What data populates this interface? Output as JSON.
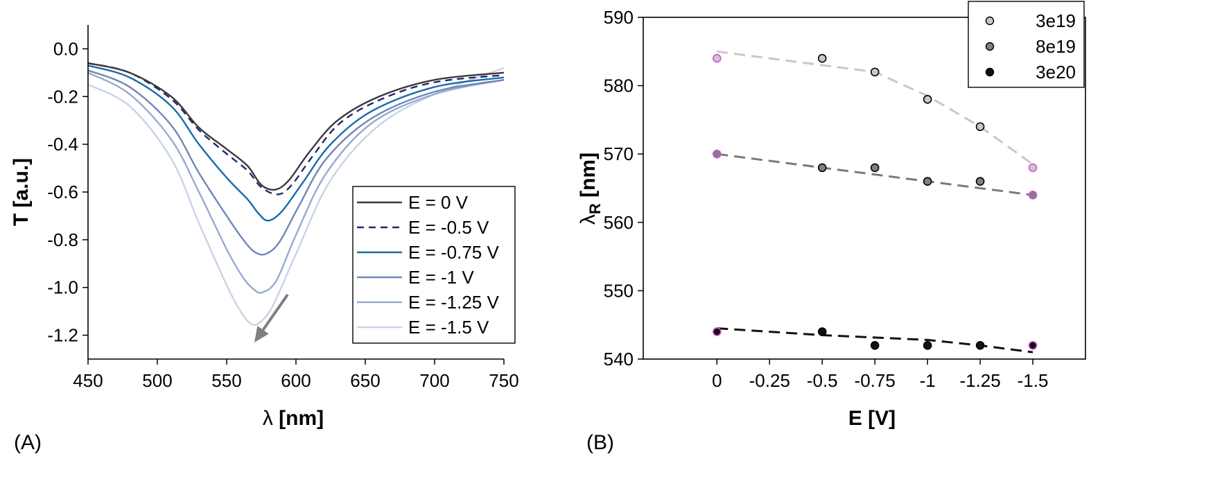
{
  "chart_data": [
    {
      "type": "line",
      "panel_label": "(A)",
      "xlabel_symbol": "λ",
      "xlabel_unit": " [nm]",
      "ylabel": "T [a.u.]",
      "xlim": [
        450,
        750
      ],
      "ylim": [
        -1.3,
        0.1
      ],
      "xticks": [
        450,
        500,
        550,
        600,
        650,
        700,
        750
      ],
      "yticks": [
        0.0,
        -0.2,
        -0.4,
        -0.6,
        -0.8,
        -1.0,
        -1.2
      ],
      "ytick_labels": [
        "0.0",
        "-0.2",
        "-0.4",
        "-0.6",
        "-0.8",
        "-1.0",
        "-1.2"
      ],
      "legend_position": "bottom-right",
      "arrow": {
        "from": [
          594,
          -1.03
        ],
        "to": [
          570,
          -1.23
        ],
        "meaning": "decreasing E"
      },
      "series": [
        {
          "name": "E = 0 V",
          "color": "#3a3a3a",
          "dash": "none",
          "x": [
            450,
            480,
            510,
            530,
            550,
            565,
            575,
            585,
            595,
            610,
            630,
            660,
            700,
            750
          ],
          "y": [
            -0.06,
            -0.1,
            -0.2,
            -0.33,
            -0.42,
            -0.49,
            -0.57,
            -0.59,
            -0.55,
            -0.43,
            -0.3,
            -0.2,
            -0.13,
            -0.1
          ]
        },
        {
          "name": "E = -0.5 V",
          "color": "#1f2a6e",
          "dash": "10,7",
          "x": [
            450,
            480,
            510,
            530,
            550,
            565,
            575,
            587,
            597,
            612,
            632,
            662,
            700,
            750
          ],
          "y": [
            -0.06,
            -0.1,
            -0.21,
            -0.34,
            -0.44,
            -0.51,
            -0.58,
            -0.61,
            -0.57,
            -0.45,
            -0.31,
            -0.21,
            -0.14,
            -0.11
          ]
        },
        {
          "name": "E = -0.75 V",
          "color": "#1a6aa8",
          "dash": "none",
          "x": [
            450,
            480,
            510,
            530,
            550,
            565,
            573,
            580,
            590,
            605,
            625,
            655,
            700,
            750
          ],
          "y": [
            -0.07,
            -0.12,
            -0.24,
            -0.4,
            -0.54,
            -0.63,
            -0.69,
            -0.72,
            -0.68,
            -0.56,
            -0.4,
            -0.26,
            -0.16,
            -0.12
          ]
        },
        {
          "name": "E = -1 V",
          "color": "#6f86b8",
          "dash": "none",
          "x": [
            450,
            480,
            510,
            530,
            550,
            562,
            570,
            578,
            588,
            602,
            622,
            655,
            700,
            750
          ],
          "y": [
            -0.09,
            -0.16,
            -0.32,
            -0.52,
            -0.7,
            -0.8,
            -0.85,
            -0.86,
            -0.81,
            -0.66,
            -0.46,
            -0.29,
            -0.18,
            -0.13
          ]
        },
        {
          "name": "E = -1.25 V",
          "color": "#97a9cf",
          "dash": "none",
          "x": [
            450,
            480,
            510,
            530,
            550,
            562,
            570,
            576,
            586,
            600,
            622,
            655,
            700,
            750
          ],
          "y": [
            -0.1,
            -0.19,
            -0.38,
            -0.6,
            -0.84,
            -0.96,
            -1.01,
            -1.02,
            -0.97,
            -0.78,
            -0.52,
            -0.31,
            -0.19,
            -0.13
          ]
        },
        {
          "name": "E = -1.5 V",
          "color": "#c8d2e8",
          "dash": "none",
          "x": [
            450,
            480,
            510,
            530,
            550,
            560,
            567,
            573,
            583,
            600,
            625,
            660,
            700,
            750
          ],
          "y": [
            -0.15,
            -0.24,
            -0.46,
            -0.73,
            -0.99,
            -1.1,
            -1.15,
            -1.15,
            -1.08,
            -0.86,
            -0.55,
            -0.32,
            -0.19,
            -0.08
          ]
        }
      ]
    },
    {
      "type": "scatter",
      "panel_label": "(B)",
      "xlabel": "E [V]",
      "ylabel_main": "λ",
      "ylabel_sub": "R",
      "ylabel_unit": " [nm]",
      "xlim": [
        0.35,
        -1.75
      ],
      "ylim": [
        540,
        590
      ],
      "xticks": [
        0,
        -0.25,
        -0.5,
        -0.75,
        -1,
        -1.25,
        -1.5
      ],
      "xtick_labels": [
        "0",
        "-0.25",
        "-0.5",
        "-0.75",
        "-1",
        "-1.25",
        "-1.5"
      ],
      "yticks": [
        540,
        550,
        560,
        570,
        580,
        590
      ],
      "legend_position": "top-right",
      "highlight_color": "#d94fd9",
      "series": [
        {
          "name": "3e19",
          "marker_color": "#c8c8c8",
          "line_color": "#c8c8c8",
          "x": [
            0,
            -0.5,
            -0.75,
            -1,
            -1.25,
            -1.5
          ],
          "y": [
            584,
            584,
            582,
            578,
            574,
            568
          ],
          "fit_x": [
            0,
            -0.5,
            -0.75,
            -1,
            -1.25,
            -1.5
          ],
          "fit_y": [
            585,
            583,
            582,
            578.5,
            574,
            568.5
          ]
        },
        {
          "name": "8e19",
          "marker_color": "#808080",
          "line_color": "#7a7a7a",
          "x": [
            0,
            -0.5,
            -0.75,
            -1,
            -1.25,
            -1.5
          ],
          "y": [
            570,
            568,
            568,
            566,
            566,
            564
          ],
          "fit_x": [
            0,
            -1.5
          ],
          "fit_y": [
            570,
            564
          ]
        },
        {
          "name": "3e20",
          "marker_color": "#111111",
          "line_color": "#111111",
          "x": [
            0,
            -0.5,
            -0.75,
            -1,
            -1.25,
            -1.5
          ],
          "y": [
            544,
            544,
            542,
            542,
            542,
            542
          ],
          "fit_x": [
            0,
            -0.5,
            -1,
            -1.25,
            -1.5
          ],
          "fit_y": [
            544.5,
            543.5,
            542.8,
            542,
            541
          ]
        }
      ]
    }
  ]
}
